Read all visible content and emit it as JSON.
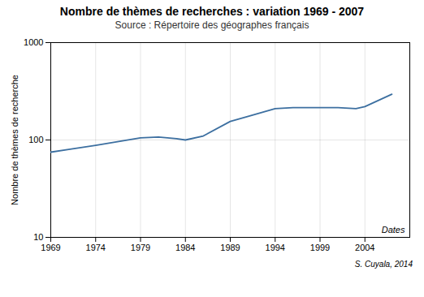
{
  "chart_data": {
    "type": "line",
    "title": "Nombre de thèmes de recherches : variation 1969 - 2007",
    "subtitle": "Source : Répertoire des géographes français",
    "ylabel": "Nombre de thèmes de recherche",
    "annotation": "Dates",
    "caption": "S. Cuyala, 2014",
    "x": [
      1969,
      1971,
      1974,
      1979,
      1981,
      1983,
      1984,
      1986,
      1989,
      1991,
      1994,
      1996,
      1999,
      2001,
      2003,
      2004,
      2007
    ],
    "values": [
      75,
      80,
      88,
      105,
      107,
      103,
      100,
      110,
      155,
      175,
      210,
      215,
      215,
      215,
      210,
      220,
      295
    ],
    "color": "#3c6fa0",
    "xlim": [
      1969,
      2009
    ],
    "ylim": [
      10,
      1000
    ],
    "xticks": [
      1969,
      1974,
      1979,
      1984,
      1989,
      1994,
      1999,
      2004
    ],
    "yticks": [
      10,
      100,
      1000
    ],
    "log": "y",
    "grid": true
  }
}
